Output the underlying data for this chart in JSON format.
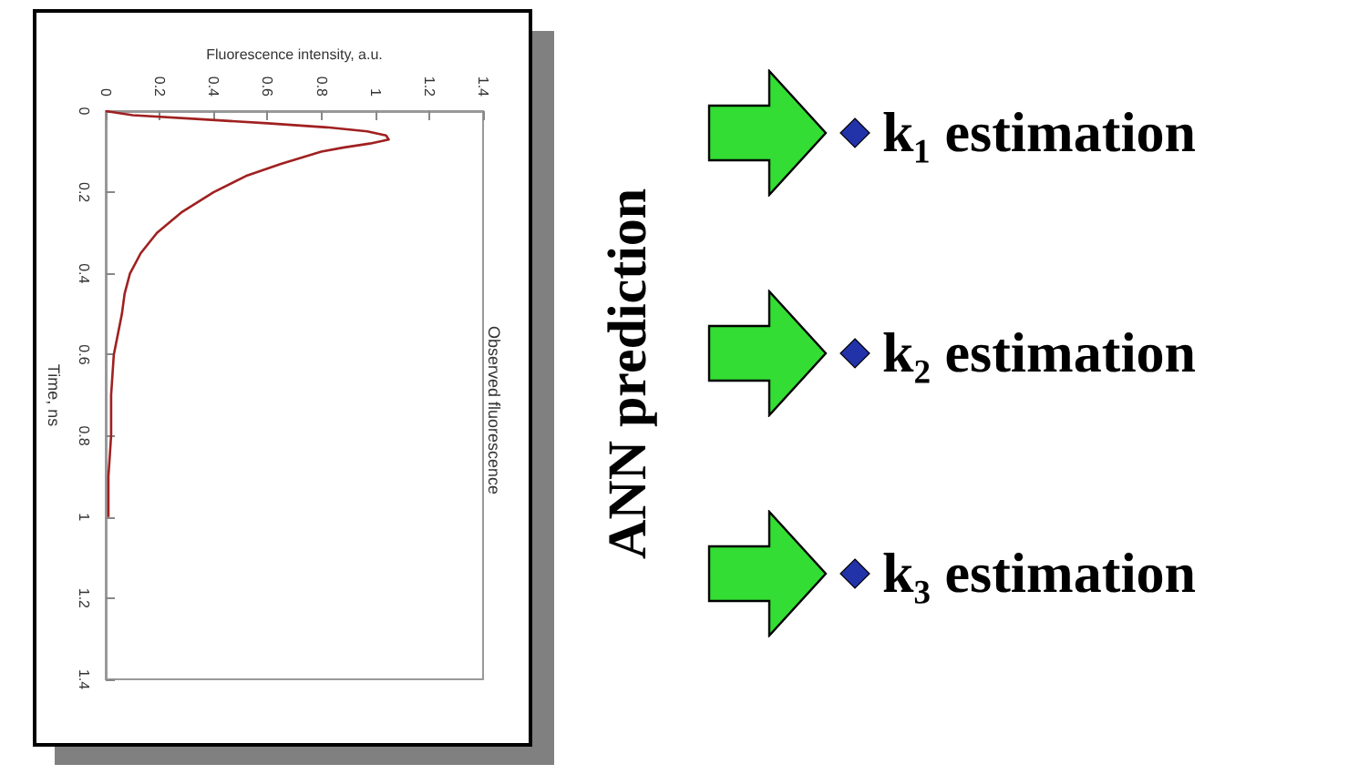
{
  "chart_data": {
    "type": "line",
    "title": "Observed fluorescence",
    "xlabel": "Fluorescence intensity, a.u.",
    "ylabel": "Time, ns",
    "series": [
      {
        "color": "#a02020",
        "x": [
          0,
          0.1,
          0.35,
          0.6,
          0.82,
          0.97,
          1.04,
          1.05,
          0.98,
          0.88,
          0.8,
          0.65,
          0.52,
          0.4,
          0.28,
          0.19,
          0.13,
          0.09,
          0.07,
          0.06,
          0.03,
          0.02,
          0.02,
          0.01,
          0.01
        ],
        "values": [
          0,
          0.01,
          0.02,
          0.03,
          0.04,
          0.05,
          0.06,
          0.07,
          0.08,
          0.09,
          0.1,
          0.13,
          0.16,
          0.2,
          0.25,
          0.3,
          0.35,
          0.4,
          0.45,
          0.5,
          0.6,
          0.7,
          0.8,
          0.9,
          1.0
        ]
      }
    ],
    "xlim": [
      0,
      1.4
    ],
    "ylim": [
      1.4,
      0
    ],
    "xticks": [
      0,
      0.2,
      0.4,
      0.6,
      0.8,
      1,
      1.2,
      1.4
    ],
    "yticks": [
      0,
      0.2,
      0.4,
      0.6,
      0.8,
      1,
      1.2,
      1.4
    ],
    "grid": false,
    "marker": "none",
    "annotations": [
      "ANN prediction",
      "k₁ estimation",
      "k₂ estimation",
      "k₃ estimation"
    ]
  }
}
